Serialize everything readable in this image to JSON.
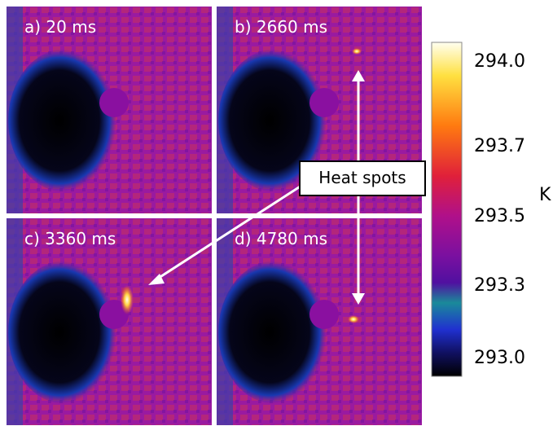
{
  "panels": [
    {
      "label": "a) 20 ms"
    },
    {
      "label": "b) 2660 ms"
    },
    {
      "label": "c) 3360 ms"
    },
    {
      "label": "d) 4780 ms"
    }
  ],
  "annotation": "Heat spots",
  "colorbar": {
    "ticks": [
      "294.0",
      "293.7",
      "293.5",
      "293.3",
      "293.0"
    ],
    "unit": "K"
  }
}
